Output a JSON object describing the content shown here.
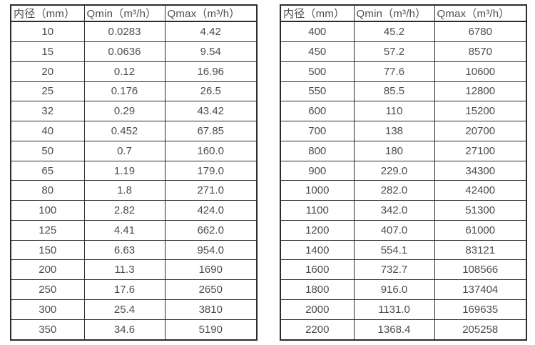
{
  "page": {
    "background_color": "#ffffff",
    "text_color": "#4d4d4d",
    "border_color": "#2b2b2b"
  },
  "tables": [
    {
      "name": "flow-spec-table-small-diameters",
      "headers": [
        "内径（mm）",
        "Qmin（m³/h）",
        "Qmax（m³/h）"
      ],
      "rows": [
        [
          "10",
          "0.0283",
          "4.42"
        ],
        [
          "15",
          "0.0636",
          "9.54"
        ],
        [
          "20",
          "0.12",
          "16.96"
        ],
        [
          "25",
          "0.176",
          "26.5"
        ],
        [
          "32",
          "0.29",
          "43.42"
        ],
        [
          "40",
          "0.452",
          "67.85"
        ],
        [
          "50",
          "0.7",
          "160.0"
        ],
        [
          "65",
          "1.19",
          "179.0"
        ],
        [
          "80",
          "1.8",
          "271.0"
        ],
        [
          "100",
          "2.82",
          "424.0"
        ],
        [
          "125",
          "4.41",
          "662.0"
        ],
        [
          "150",
          "6.63",
          "954.0"
        ],
        [
          "200",
          "11.3",
          "1690"
        ],
        [
          "250",
          "17.6",
          "2650"
        ],
        [
          "300",
          "25.4",
          "3810"
        ],
        [
          "350",
          "34.6",
          "5190"
        ]
      ]
    },
    {
      "name": "flow-spec-table-large-diameters",
      "headers": [
        "内径（mm）",
        "Qmin（m³/h）",
        "Qmax（m³/h）"
      ],
      "rows": [
        [
          "400",
          "45.2",
          "6780"
        ],
        [
          "450",
          "57.2",
          "8570"
        ],
        [
          "500",
          "77.6",
          "10600"
        ],
        [
          "550",
          "85.5",
          "12800"
        ],
        [
          "600",
          "110",
          "15200"
        ],
        [
          "700",
          "138",
          "20700"
        ],
        [
          "800",
          "180",
          "27100"
        ],
        [
          "900",
          "229.0",
          "34300"
        ],
        [
          "1000",
          "282.0",
          "42400"
        ],
        [
          "1100",
          "342.0",
          "51300"
        ],
        [
          "1200",
          "407.0",
          "61000"
        ],
        [
          "1400",
          "554.1",
          "83121"
        ],
        [
          "1600",
          "732.7",
          "108566"
        ],
        [
          "1800",
          "916.0",
          "137404"
        ],
        [
          "2000",
          "1131.0",
          "169635"
        ],
        [
          "2200",
          "1368.4",
          "205258"
        ]
      ]
    }
  ]
}
